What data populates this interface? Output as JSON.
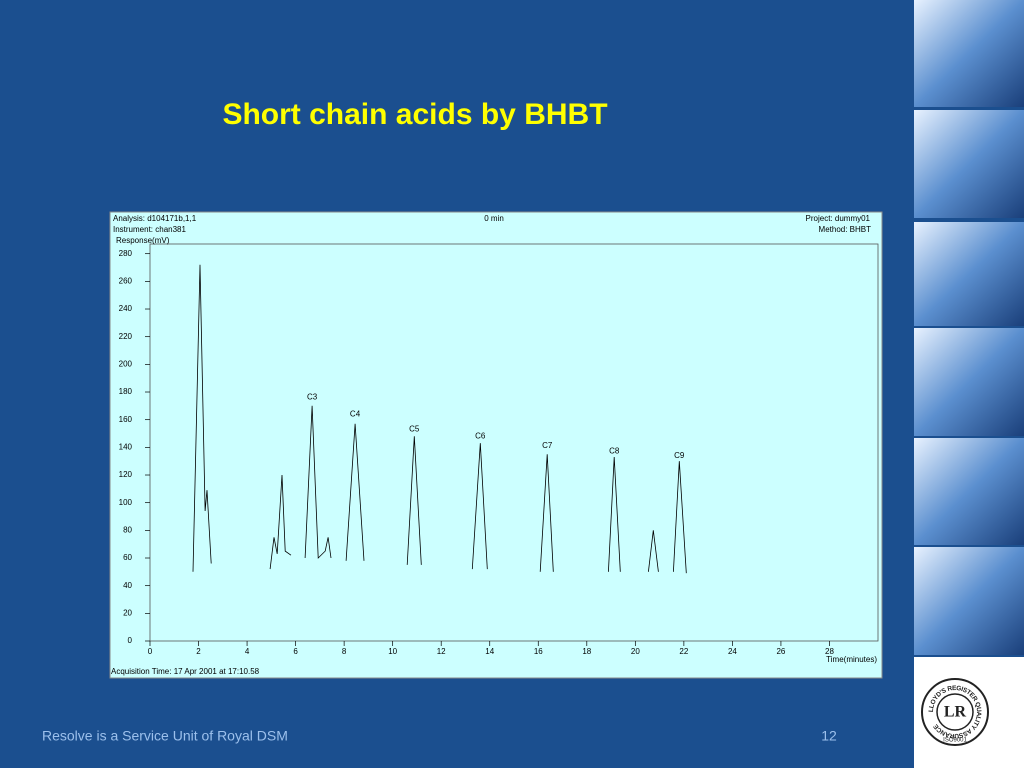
{
  "slide": {
    "title": "Short chain acids by BHBT",
    "footer": "Resolve is a Service Unit of Royal DSM",
    "page_number": "12"
  },
  "logo": {
    "ring_text": "LLOYD'S REGISTER QUALITY ASSURANCE",
    "standard": "ISO9001",
    "mark": "LR"
  },
  "chart_data": {
    "type": "line",
    "header": {
      "analysis": "Analysis: d104171b,1,1",
      "time": "0 min",
      "project": "Project: dummy01",
      "instrument": "Instrument: chan381",
      "method": "Method: BHBT"
    },
    "y_label": "Response(mV)",
    "x_label": "Time(minutes)",
    "footnote": "Acquisition Time: 17 Apr 2001 at 17:10.58",
    "color": "#000000",
    "xlim": [
      0,
      30
    ],
    "xticks": [
      0,
      2,
      4,
      6,
      8,
      10,
      12,
      14,
      16,
      18,
      20,
      22,
      24,
      26,
      28
    ],
    "ylim": [
      0,
      287
    ],
    "yticks": [
      0,
      20,
      40,
      60,
      80,
      100,
      120,
      140,
      160,
      180,
      200,
      220,
      240,
      260,
      280
    ],
    "x": [
      1.77,
      2.06,
      2.27,
      2.35,
      2.52,
      null,
      4.95,
      5.11,
      5.24,
      5.44,
      5.57,
      5.81,
      null,
      6.39,
      6.68,
      6.93,
      7.22,
      7.34,
      7.46,
      null,
      8.08,
      8.45,
      8.82,
      null,
      10.6,
      10.89,
      11.18,
      null,
      13.28,
      13.61,
      13.9,
      null,
      16.08,
      16.37,
      16.62,
      null,
      18.89,
      19.13,
      19.38,
      null,
      20.54,
      20.74,
      20.95,
      null,
      21.57,
      21.81,
      22.1
    ],
    "values": [
      50,
      272,
      94,
      109,
      56,
      null,
      52,
      75,
      63,
      120,
      65,
      62,
      null,
      60,
      170,
      60,
      65,
      75,
      60,
      null,
      58,
      157,
      58,
      null,
      55,
      148,
      55,
      null,
      52,
      143,
      52,
      null,
      50,
      135,
      50,
      null,
      50,
      133,
      50,
      null,
      50,
      80,
      50,
      null,
      50,
      130,
      49
    ],
    "annotations": [
      {
        "text": "C3",
        "x": 6.68,
        "y": 176
      },
      {
        "text": "C4",
        "x": 8.45,
        "y": 164
      },
      {
        "text": "C5",
        "x": 10.89,
        "y": 153
      },
      {
        "text": "C6",
        "x": 13.61,
        "y": 148
      },
      {
        "text": "C7",
        "x": 16.37,
        "y": 141
      },
      {
        "text": "C8",
        "x": 19.13,
        "y": 137
      },
      {
        "text": "C9",
        "x": 21.81,
        "y": 134
      }
    ]
  }
}
